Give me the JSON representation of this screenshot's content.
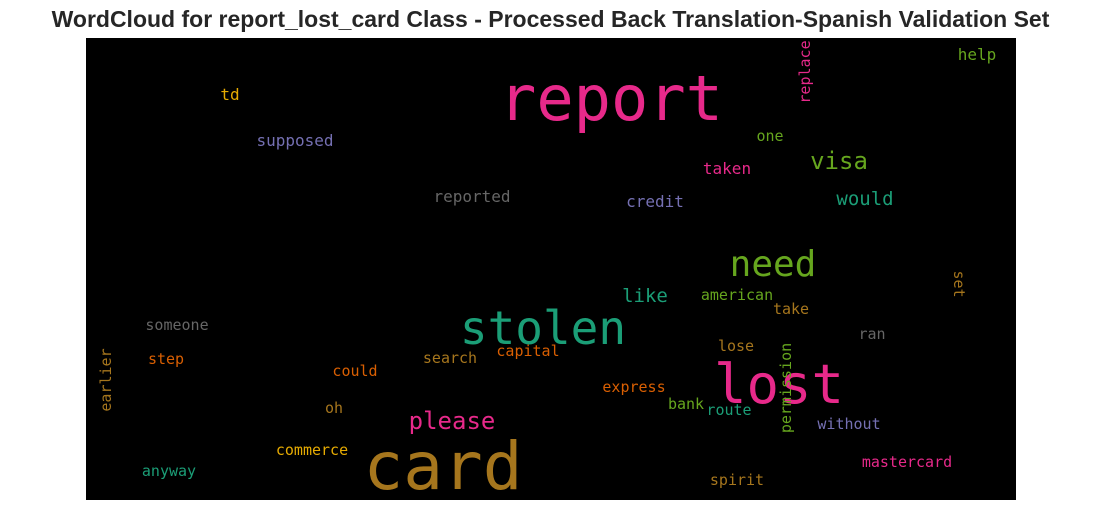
{
  "title": "WordCloud for report_lost_card Class - Processed Back Translation-Spanish Validation Set",
  "chart_data": {
    "type": "wordcloud",
    "background": "#000000",
    "words": [
      {
        "text": "report",
        "size": 62,
        "color": "#e7298a",
        "rotate": 0
      },
      {
        "text": "card",
        "size": 66,
        "color": "#a6761d",
        "rotate": 0
      },
      {
        "text": "lost",
        "size": 54,
        "color": "#e7298a",
        "rotate": 0
      },
      {
        "text": "stolen",
        "size": 46,
        "color": "#1b9e77",
        "rotate": 0
      },
      {
        "text": "need",
        "size": 36,
        "color": "#66a61e",
        "rotate": 0
      },
      {
        "text": "please",
        "size": 24,
        "color": "#e7298a",
        "rotate": 0
      },
      {
        "text": "visa",
        "size": 24,
        "color": "#66a61e",
        "rotate": 0
      },
      {
        "text": "would",
        "size": 19,
        "color": "#1b9e77",
        "rotate": 0
      },
      {
        "text": "like",
        "size": 19,
        "color": "#1b9e77",
        "rotate": 0
      },
      {
        "text": "td",
        "size": 16,
        "color": "#e6ab02",
        "rotate": 0
      },
      {
        "text": "supposed",
        "size": 16,
        "color": "#7570b3",
        "rotate": 0
      },
      {
        "text": "replace",
        "size": 15,
        "color": "#e7298a",
        "rotate": -90
      },
      {
        "text": "help",
        "size": 16,
        "color": "#66a61e",
        "rotate": 0
      },
      {
        "text": "one",
        "size": 15,
        "color": "#66a61e",
        "rotate": 0
      },
      {
        "text": "taken",
        "size": 16,
        "color": "#e7298a",
        "rotate": 0
      },
      {
        "text": "reported",
        "size": 16,
        "color": "#666666",
        "rotate": 0
      },
      {
        "text": "credit",
        "size": 16,
        "color": "#7570b3",
        "rotate": 0
      },
      {
        "text": "american",
        "size": 15,
        "color": "#66a61e",
        "rotate": 0
      },
      {
        "text": "take",
        "size": 15,
        "color": "#a6761d",
        "rotate": 0
      },
      {
        "text": "set",
        "size": 15,
        "color": "#a6761d",
        "rotate": 90
      },
      {
        "text": "someone",
        "size": 15,
        "color": "#666666",
        "rotate": 0
      },
      {
        "text": "ran",
        "size": 15,
        "color": "#666666",
        "rotate": 0
      },
      {
        "text": "capital",
        "size": 15,
        "color": "#d95f02",
        "rotate": 0
      },
      {
        "text": "search",
        "size": 15,
        "color": "#a6761d",
        "rotate": 0
      },
      {
        "text": "lose",
        "size": 15,
        "color": "#a6761d",
        "rotate": 0
      },
      {
        "text": "step",
        "size": 15,
        "color": "#d95f02",
        "rotate": 0
      },
      {
        "text": "earlier",
        "size": 15,
        "color": "#a6761d",
        "rotate": -90
      },
      {
        "text": "could",
        "size": 15,
        "color": "#d95f02",
        "rotate": 0
      },
      {
        "text": "permission",
        "size": 15,
        "color": "#66a61e",
        "rotate": -90
      },
      {
        "text": "express",
        "size": 15,
        "color": "#d95f02",
        "rotate": 0
      },
      {
        "text": "oh",
        "size": 15,
        "color": "#a6761d",
        "rotate": 0
      },
      {
        "text": "bank",
        "size": 15,
        "color": "#66a61e",
        "rotate": 0
      },
      {
        "text": "route",
        "size": 15,
        "color": "#1b9e77",
        "rotate": 0
      },
      {
        "text": "without",
        "size": 15,
        "color": "#7570b3",
        "rotate": 0
      },
      {
        "text": "commerce",
        "size": 15,
        "color": "#e6ab02",
        "rotate": 0
      },
      {
        "text": "mastercard",
        "size": 15,
        "color": "#e7298a",
        "rotate": 0
      },
      {
        "text": "anyway",
        "size": 15,
        "color": "#1b9e77",
        "rotate": 0
      },
      {
        "text": "spirit",
        "size": 15,
        "color": "#a6761d",
        "rotate": 0
      }
    ]
  }
}
